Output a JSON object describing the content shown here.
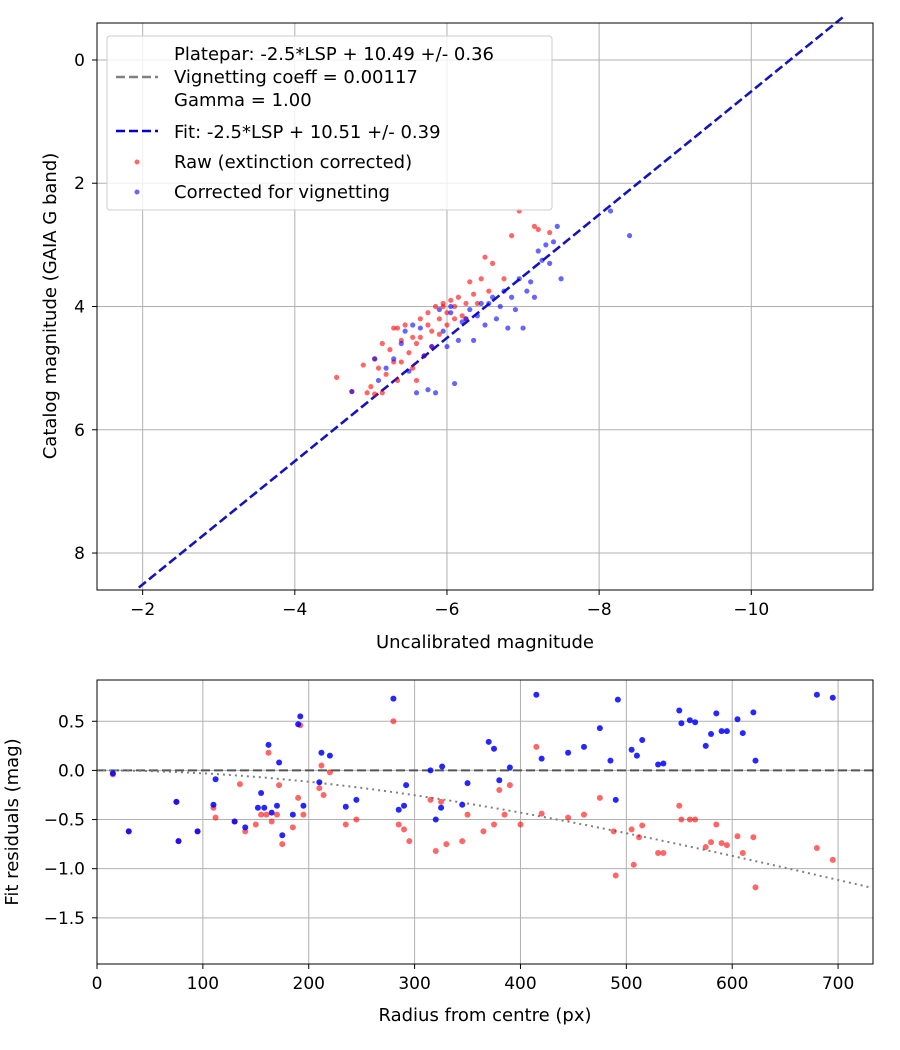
{
  "chart_data": [
    {
      "type": "scatter",
      "xlabel": "Uncalibrated magnitude",
      "ylabel": "Catalog magnitude (GAIA G band)",
      "xlim": [
        -1.4,
        -11.6
      ],
      "ylim": [
        8.6,
        -0.6
      ],
      "x_ticks": [
        -2,
        -4,
        -6,
        -8,
        -10
      ],
      "x_tick_labels": [
        "−2",
        "−4",
        "−6",
        "−8",
        "−10"
      ],
      "y_ticks": [
        0,
        2,
        4,
        6,
        8
      ],
      "y_tick_labels": [
        "0",
        "2",
        "4",
        "6",
        "8"
      ],
      "grid": true,
      "legend_position": "top-left",
      "legend": {
        "platepar": [
          "Platepar: -2.5*LSP + 10.49 +/- 0.36",
          "Vignetting coeff = 0.00117",
          "Gamma = 1.00"
        ],
        "fit": "Fit: -2.5*LSP + 10.51 +/- 0.39",
        "raw": "Raw (extinction corrected)",
        "corrected": "Corrected for vignetting"
      },
      "colors": {
        "raw": "#ff0000",
        "corrected": "#0000ff",
        "fit": "#0000cc",
        "platepar": "#808080"
      },
      "series": [
        {
          "name": "Raw (extinction corrected)",
          "points": [
            [
              -4.55,
              5.15
            ],
            [
              -4.75,
              5.38
            ],
            [
              -4.9,
              4.95
            ],
            [
              -4.95,
              5.4
            ],
            [
              -5.0,
              5.3
            ],
            [
              -5.05,
              4.85
            ],
            [
              -5.1,
              5.0
            ],
            [
              -5.15,
              5.4
            ],
            [
              -5.15,
              4.6
            ],
            [
              -5.2,
              5.1
            ],
            [
              -5.25,
              4.7
            ],
            [
              -5.3,
              4.35
            ],
            [
              -5.3,
              4.9
            ],
            [
              -5.35,
              5.2
            ],
            [
              -5.4,
              4.55
            ],
            [
              -5.4,
              4.9
            ],
            [
              -5.45,
              4.3
            ],
            [
              -5.5,
              4.75
            ],
            [
              -5.55,
              5.0
            ],
            [
              -5.55,
              4.5
            ],
            [
              -5.6,
              5.2
            ],
            [
              -5.6,
              4.6
            ],
            [
              -5.65,
              4.2
            ],
            [
              -5.65,
              4.5
            ],
            [
              -5.7,
              4.8
            ],
            [
              -5.75,
              4.3
            ],
            [
              -5.75,
              4.1
            ],
            [
              -5.8,
              4.4
            ],
            [
              -5.8,
              4.65
            ],
            [
              -5.85,
              4.0
            ],
            [
              -5.9,
              4.2
            ],
            [
              -5.9,
              4.45
            ],
            [
              -5.95,
              3.95
            ],
            [
              -6.0,
              4.1
            ],
            [
              -6.0,
              4.3
            ],
            [
              -6.05,
              3.9
            ],
            [
              -6.1,
              4.0
            ],
            [
              -6.1,
              4.2
            ],
            [
              -6.15,
              3.85
            ],
            [
              -6.2,
              4.15
            ],
            [
              -6.25,
              3.95
            ],
            [
              -6.3,
              3.6
            ],
            [
              -6.35,
              3.8
            ],
            [
              -6.4,
              3.95
            ],
            [
              -6.45,
              3.55
            ],
            [
              -6.5,
              3.2
            ],
            [
              -6.55,
              3.75
            ],
            [
              -6.6,
              3.3
            ],
            [
              -6.75,
              3.55
            ],
            [
              -6.85,
              2.85
            ],
            [
              -6.95,
              2.45
            ],
            [
              -7.15,
              2.7
            ],
            [
              -7.2,
              2.75
            ],
            [
              -7.35,
              2.8
            ],
            [
              -5.05,
              5.42
            ],
            [
              -5.35,
              4.35
            ],
            [
              -5.95,
              4.0
            ],
            [
              -6.25,
              4.2
            ]
          ]
        },
        {
          "name": "Corrected for vignetting",
          "points": [
            [
              -4.75,
              5.38
            ],
            [
              -5.05,
              4.85
            ],
            [
              -5.1,
              5.2
            ],
            [
              -5.2,
              5.0
            ],
            [
              -5.3,
              4.85
            ],
            [
              -5.4,
              4.6
            ],
            [
              -5.45,
              4.4
            ],
            [
              -5.5,
              5.05
            ],
            [
              -5.55,
              4.3
            ],
            [
              -5.6,
              5.4
            ],
            [
              -5.65,
              4.35
            ],
            [
              -5.7,
              4.8
            ],
            [
              -5.75,
              5.35
            ],
            [
              -5.8,
              4.65
            ],
            [
              -5.85,
              5.4
            ],
            [
              -5.9,
              4.05
            ],
            [
              -5.95,
              4.4
            ],
            [
              -6.0,
              4.65
            ],
            [
              -6.05,
              4.1
            ],
            [
              -6.1,
              5.25
            ],
            [
              -6.15,
              4.55
            ],
            [
              -6.2,
              4.25
            ],
            [
              -6.25,
              4.2
            ],
            [
              -6.3,
              4.05
            ],
            [
              -6.35,
              4.55
            ],
            [
              -6.4,
              4.15
            ],
            [
              -6.45,
              3.95
            ],
            [
              -6.5,
              4.3
            ],
            [
              -6.55,
              3.95
            ],
            [
              -6.6,
              3.85
            ],
            [
              -6.65,
              4.2
            ],
            [
              -6.7,
              4.0
            ],
            [
              -6.75,
              3.75
            ],
            [
              -6.8,
              4.35
            ],
            [
              -6.85,
              3.85
            ],
            [
              -6.9,
              4.05
            ],
            [
              -6.95,
              3.55
            ],
            [
              -7.0,
              4.35
            ],
            [
              -7.05,
              3.75
            ],
            [
              -7.1,
              3.6
            ],
            [
              -7.15,
              3.85
            ],
            [
              -7.2,
              3.1
            ],
            [
              -7.25,
              3.25
            ],
            [
              -7.3,
              3.0
            ],
            [
              -7.35,
              3.3
            ],
            [
              -7.4,
              2.95
            ],
            [
              -7.45,
              2.7
            ],
            [
              -7.5,
              3.55
            ],
            [
              -8.15,
              2.45
            ],
            [
              -8.4,
              2.85
            ],
            [
              -6.05,
              4.0
            ]
          ]
        }
      ],
      "lines": {
        "fit": {
          "x": [
            -1.95,
            -11.2
          ],
          "y": [
            8.56,
            -0.69
          ]
        },
        "platepar": {
          "x": [
            -1.95,
            -11.2
          ],
          "y": [
            8.56,
            -0.69
          ]
        }
      }
    },
    {
      "type": "scatter",
      "xlabel": "Radius from centre (px)",
      "ylabel": "Fit residuals (mag)",
      "xlim": [
        0,
        733
      ],
      "ylim": [
        -1.97,
        0.92
      ],
      "x_ticks": [
        0,
        100,
        200,
        300,
        400,
        500,
        600,
        700
      ],
      "x_tick_labels": [
        "0",
        "100",
        "200",
        "300",
        "400",
        "500",
        "600",
        "700"
      ],
      "y_ticks": [
        0.5,
        0.0,
        -0.5,
        -1.0,
        -1.5
      ],
      "y_tick_labels": [
        "0.5",
        "0.0",
        "−0.5",
        "−1.0",
        "−1.5"
      ],
      "grid": true,
      "zero_line": 0.0,
      "vignetting_coeff": 0.00117,
      "colors": {
        "raw": "#ff0000",
        "corrected": "#0000ff",
        "model": "#808080"
      },
      "series": [
        {
          "name": "Raw (extinction corrected)",
          "points": [
            [
              15,
              -0.04
            ],
            [
              30,
              -0.62
            ],
            [
              75,
              -0.32
            ],
            [
              77,
              -0.72
            ],
            [
              95,
              -0.62
            ],
            [
              110,
              -0.38
            ],
            [
              112,
              -0.48
            ],
            [
              130,
              -0.52
            ],
            [
              135,
              -0.14
            ],
            [
              140,
              -0.62
            ],
            [
              150,
              -0.55
            ],
            [
              155,
              -0.45
            ],
            [
              160,
              -0.45
            ],
            [
              162,
              0.18
            ],
            [
              165,
              -0.52
            ],
            [
              170,
              -0.45
            ],
            [
              172,
              -0.15
            ],
            [
              175,
              -0.75
            ],
            [
              185,
              -0.58
            ],
            [
              190,
              -0.28
            ],
            [
              192,
              0.46
            ],
            [
              195,
              -0.45
            ],
            [
              210,
              -0.18
            ],
            [
              212,
              0.05
            ],
            [
              214,
              -0.25
            ],
            [
              220,
              -0.02
            ],
            [
              235,
              -0.55
            ],
            [
              245,
              -0.5
            ],
            [
              280,
              0.5
            ],
            [
              285,
              -0.55
            ],
            [
              290,
              -0.6
            ],
            [
              295,
              -0.72
            ],
            [
              315,
              -0.3
            ],
            [
              320,
              -0.82
            ],
            [
              325,
              -0.32
            ],
            [
              330,
              -0.75
            ],
            [
              345,
              -0.72
            ],
            [
              350,
              -0.45
            ],
            [
              365,
              -0.62
            ],
            [
              375,
              -0.55
            ],
            [
              380,
              -0.2
            ],
            [
              385,
              -0.45
            ],
            [
              390,
              -0.15
            ],
            [
              400,
              -0.55
            ],
            [
              415,
              0.24
            ],
            [
              420,
              -0.44
            ],
            [
              445,
              -0.48
            ],
            [
              460,
              -0.45
            ],
            [
              475,
              -0.28
            ],
            [
              488,
              -0.62
            ],
            [
              490,
              -1.07
            ],
            [
              505,
              -0.6
            ],
            [
              507,
              -0.96
            ],
            [
              512,
              -0.68
            ],
            [
              515,
              -0.56
            ],
            [
              530,
              -0.84
            ],
            [
              535,
              -0.84
            ],
            [
              550,
              -0.36
            ],
            [
              552,
              -0.5
            ],
            [
              560,
              -0.5
            ],
            [
              565,
              -0.5
            ],
            [
              575,
              -0.78
            ],
            [
              580,
              -0.73
            ],
            [
              585,
              -0.55
            ],
            [
              590,
              -0.74
            ],
            [
              595,
              -0.76
            ],
            [
              605,
              -0.67
            ],
            [
              610,
              -0.84
            ],
            [
              620,
              -0.68
            ],
            [
              622,
              -1.19
            ],
            [
              680,
              -0.79
            ],
            [
              695,
              -0.91
            ]
          ]
        },
        {
          "name": "Corrected for vignetting",
          "points": [
            [
              15,
              -0.03
            ],
            [
              30,
              -0.62
            ],
            [
              75,
              -0.32
            ],
            [
              77,
              -0.72
            ],
            [
              95,
              -0.62
            ],
            [
              110,
              -0.35
            ],
            [
              112,
              -0.09
            ],
            [
              130,
              -0.52
            ],
            [
              140,
              -0.58
            ],
            [
              152,
              -0.38
            ],
            [
              155,
              -0.23
            ],
            [
              158,
              -0.38
            ],
            [
              162,
              0.26
            ],
            [
              165,
              -0.43
            ],
            [
              170,
              -0.36
            ],
            [
              172,
              0.08
            ],
            [
              175,
              -0.66
            ],
            [
              185,
              -0.45
            ],
            [
              190,
              0.47
            ],
            [
              192,
              0.55
            ],
            [
              195,
              -0.36
            ],
            [
              210,
              -0.12
            ],
            [
              212,
              0.18
            ],
            [
              220,
              0.15
            ],
            [
              235,
              -0.37
            ],
            [
              245,
              -0.3
            ],
            [
              280,
              0.73
            ],
            [
              285,
              -0.4
            ],
            [
              290,
              -0.36
            ],
            [
              292,
              -0.15
            ],
            [
              315,
              0.0
            ],
            [
              320,
              -0.5
            ],
            [
              325,
              -0.38
            ],
            [
              326,
              0.04
            ],
            [
              345,
              -0.35
            ],
            [
              350,
              -0.13
            ],
            [
              370,
              0.29
            ],
            [
              375,
              0.22
            ],
            [
              380,
              -0.1
            ],
            [
              390,
              0.03
            ],
            [
              415,
              0.77
            ],
            [
              420,
              0.12
            ],
            [
              445,
              0.18
            ],
            [
              460,
              0.24
            ],
            [
              475,
              0.43
            ],
            [
              485,
              0.1
            ],
            [
              490,
              -0.3
            ],
            [
              492,
              0.72
            ],
            [
              505,
              0.21
            ],
            [
              510,
              0.15
            ],
            [
              515,
              0.31
            ],
            [
              530,
              0.06
            ],
            [
              535,
              0.07
            ],
            [
              550,
              0.61
            ],
            [
              552,
              0.48
            ],
            [
              560,
              0.51
            ],
            [
              565,
              0.49
            ],
            [
              575,
              0.25
            ],
            [
              580,
              0.37
            ],
            [
              585,
              0.58
            ],
            [
              590,
              0.4
            ],
            [
              595,
              0.4
            ],
            [
              605,
              0.52
            ],
            [
              610,
              0.38
            ],
            [
              620,
              0.59
            ],
            [
              622,
              0.1
            ],
            [
              680,
              0.77
            ],
            [
              695,
              0.74
            ]
          ]
        }
      ]
    }
  ]
}
